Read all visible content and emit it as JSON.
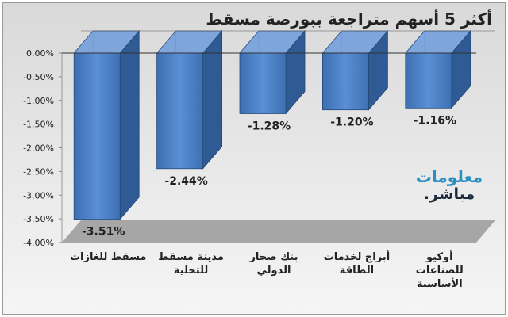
{
  "chart_data": {
    "type": "bar",
    "title": "أكثر 5 أسهم متراجعة ببورصة مسقط",
    "categories": [
      [
        "مسقط للغازات"
      ],
      [
        "مدينة مسقط",
        "للتحلية"
      ],
      [
        "بنك صحار",
        "الدولي"
      ],
      [
        "أبراج لخدمات",
        "الطاقة"
      ],
      [
        "أوكيو",
        "للصناعات",
        "الأساسية"
      ]
    ],
    "values": [
      -3.51,
      -2.44,
      -1.28,
      -1.2,
      -1.16
    ],
    "data_labels": [
      "-3.51%",
      "-2.44%",
      "-1.28%",
      "-1.20%",
      "-1.16%"
    ],
    "y_ticks": [
      "0.00%",
      "-0.50%",
      "-1.00%",
      "-1.50%",
      "-2.00%",
      "-2.50%",
      "-3.00%",
      "-3.50%",
      "-4.00%"
    ],
    "ylim": [
      -4.0,
      0.0
    ],
    "grid": true,
    "bar_color": "#4f81bd",
    "style": "3d"
  },
  "watermark": {
    "line1": "معلومات",
    "line2": "مباشر."
  }
}
